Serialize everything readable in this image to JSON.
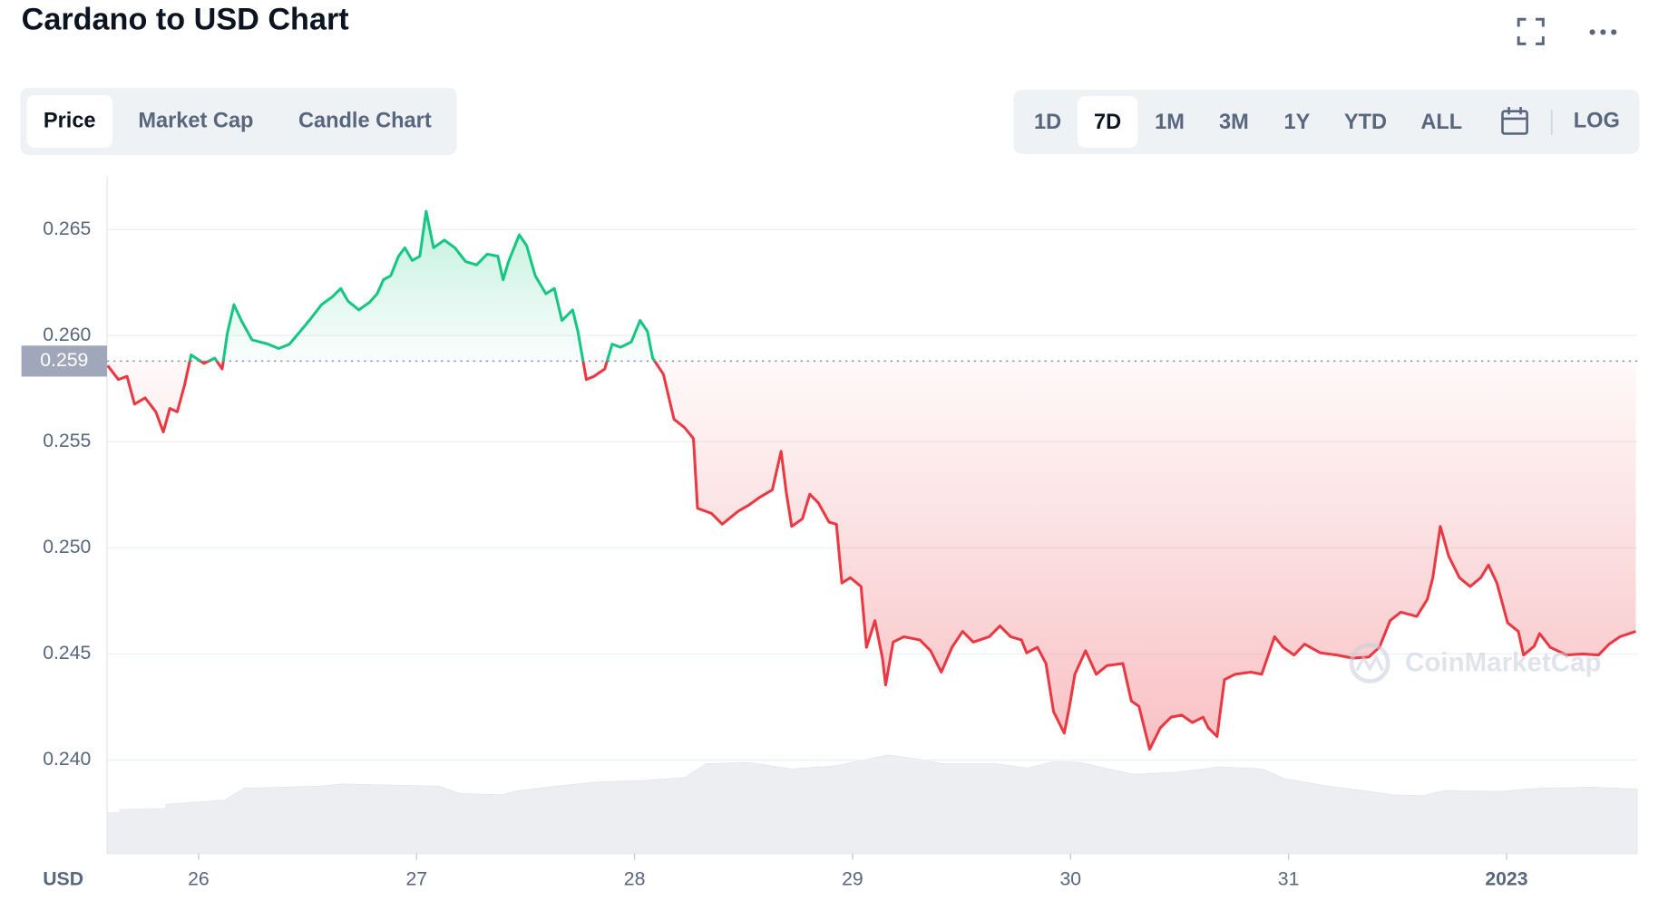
{
  "header": {
    "title": "Cardano to USD Chart"
  },
  "tabs": {
    "items": [
      "Price",
      "Market Cap",
      "Candle Chart"
    ],
    "active": 0
  },
  "ranges": {
    "items": [
      "1D",
      "7D",
      "1M",
      "3M",
      "1Y",
      "YTD",
      "ALL"
    ],
    "active": 1,
    "log": "LOG"
  },
  "watermark": "CoinMarketCap",
  "chart_data": {
    "type": "line",
    "y_unit": "USD",
    "x": [
      25.583,
      25.632,
      25.672,
      25.706,
      25.755,
      25.804,
      25.838,
      25.868,
      25.902,
      25.936,
      25.966,
      26.025,
      26.074,
      26.108,
      26.132,
      26.162,
      26.196,
      26.245,
      26.319,
      26.368,
      26.417,
      26.466,
      26.515,
      26.564,
      26.613,
      26.652,
      26.686,
      26.735,
      26.784,
      26.819,
      26.848,
      26.882,
      26.917,
      26.946,
      26.98,
      27.015,
      27.044,
      27.078,
      27.127,
      27.176,
      27.225,
      27.275,
      27.324,
      27.373,
      27.397,
      27.422,
      27.471,
      27.505,
      27.544,
      27.593,
      27.632,
      27.667,
      27.716,
      27.74,
      27.779,
      27.814,
      27.863,
      27.897,
      27.936,
      27.985,
      28.025,
      28.059,
      28.083,
      28.132,
      28.181,
      28.23,
      28.27,
      28.289,
      28.353,
      28.402,
      28.475,
      28.525,
      28.574,
      28.632,
      28.672,
      28.696,
      28.721,
      28.77,
      28.804,
      28.843,
      28.892,
      28.926,
      28.951,
      28.99,
      29.039,
      29.064,
      29.103,
      29.137,
      29.152,
      29.186,
      29.235,
      29.309,
      29.358,
      29.407,
      29.456,
      29.505,
      29.554,
      29.627,
      29.676,
      29.725,
      29.775,
      29.799,
      29.848,
      29.887,
      29.922,
      29.971,
      29.995,
      30.02,
      30.069,
      30.118,
      30.167,
      30.24,
      30.279,
      30.314,
      30.363,
      30.412,
      30.461,
      30.51,
      30.559,
      30.608,
      30.632,
      30.672,
      30.706,
      30.755,
      30.828,
      30.877,
      30.936,
      30.975,
      31.025,
      31.074,
      31.147,
      31.221,
      31.294,
      31.368,
      31.417,
      31.466,
      31.515,
      31.588,
      31.637,
      31.662,
      31.696,
      31.735,
      31.784,
      31.833,
      31.882,
      31.917,
      31.956,
      32.005,
      32.054,
      32.078,
      32.127,
      32.152,
      32.201,
      32.275,
      32.348,
      32.422,
      32.471,
      32.52,
      32.593
    ],
    "values": [
      0.25859,
      0.25793,
      0.25808,
      0.25677,
      0.25707,
      0.25641,
      0.25546,
      0.25657,
      0.25641,
      0.25768,
      0.25909,
      0.25869,
      0.25894,
      0.25843,
      0.2601,
      0.26146,
      0.26071,
      0.2598,
      0.2596,
      0.25939,
      0.2596,
      0.2602,
      0.26081,
      0.26146,
      0.26182,
      0.26222,
      0.26162,
      0.26121,
      0.26157,
      0.26197,
      0.26263,
      0.26283,
      0.26374,
      0.26414,
      0.26354,
      0.26374,
      0.26586,
      0.26414,
      0.2645,
      0.26414,
      0.26349,
      0.26333,
      0.26384,
      0.26374,
      0.26263,
      0.26349,
      0.26475,
      0.26424,
      0.26283,
      0.26197,
      0.26222,
      0.26071,
      0.26121,
      0.2602,
      0.25793,
      0.25808,
      0.25843,
      0.2596,
      0.25945,
      0.2597,
      0.26071,
      0.2602,
      0.25894,
      0.25818,
      0.25606,
      0.25566,
      0.25515,
      0.25187,
      0.25162,
      0.25111,
      0.25172,
      0.25202,
      0.25238,
      0.25273,
      0.25455,
      0.25263,
      0.25101,
      0.25137,
      0.25253,
      0.25212,
      0.25121,
      0.25111,
      0.24834,
      0.24859,
      0.24818,
      0.24531,
      0.24657,
      0.2448,
      0.24354,
      0.24556,
      0.24581,
      0.24566,
      0.24515,
      0.24414,
      0.24531,
      0.24606,
      0.24556,
      0.24581,
      0.24632,
      0.24581,
      0.24566,
      0.24505,
      0.24531,
      0.24455,
      0.24228,
      0.24127,
      0.24253,
      0.24404,
      0.24515,
      0.24404,
      0.24445,
      0.24455,
      0.24278,
      0.24253,
      0.24051,
      0.24152,
      0.24202,
      0.24212,
      0.24177,
      0.24202,
      0.24152,
      0.24111,
      0.24379,
      0.24404,
      0.24414,
      0.24404,
      0.24581,
      0.24531,
      0.24495,
      0.24546,
      0.24505,
      0.24495,
      0.2448,
      0.24485,
      0.24531,
      0.24657,
      0.24697,
      0.24677,
      0.24758,
      0.24859,
      0.25101,
      0.2496,
      0.24859,
      0.24818,
      0.24859,
      0.24919,
      0.24834,
      0.24647,
      0.24606,
      0.24495,
      0.24536,
      0.24596,
      0.24531,
      0.24495,
      0.245,
      0.24495,
      0.24546,
      0.24581,
      0.24606
    ],
    "color_up": "#16c784",
    "color_down": "#ea3943",
    "baseline": {
      "value": 0.2588,
      "label": "0.259"
    },
    "xlim": [
      25.58,
      32.6
    ],
    "xticks": [
      26,
      27,
      28,
      29,
      30,
      31,
      {
        "value": 32,
        "label": "2023"
      }
    ],
    "ylim": [
      0.2356,
      0.2675
    ],
    "yticks": [
      {
        "value": 0.24,
        "label": "0.240"
      },
      0.245,
      {
        "value": 0.25,
        "label": "0.250"
      },
      0.255,
      {
        "value": 0.26,
        "label": "0.260"
      },
      0.265
    ],
    "grid": true
  }
}
